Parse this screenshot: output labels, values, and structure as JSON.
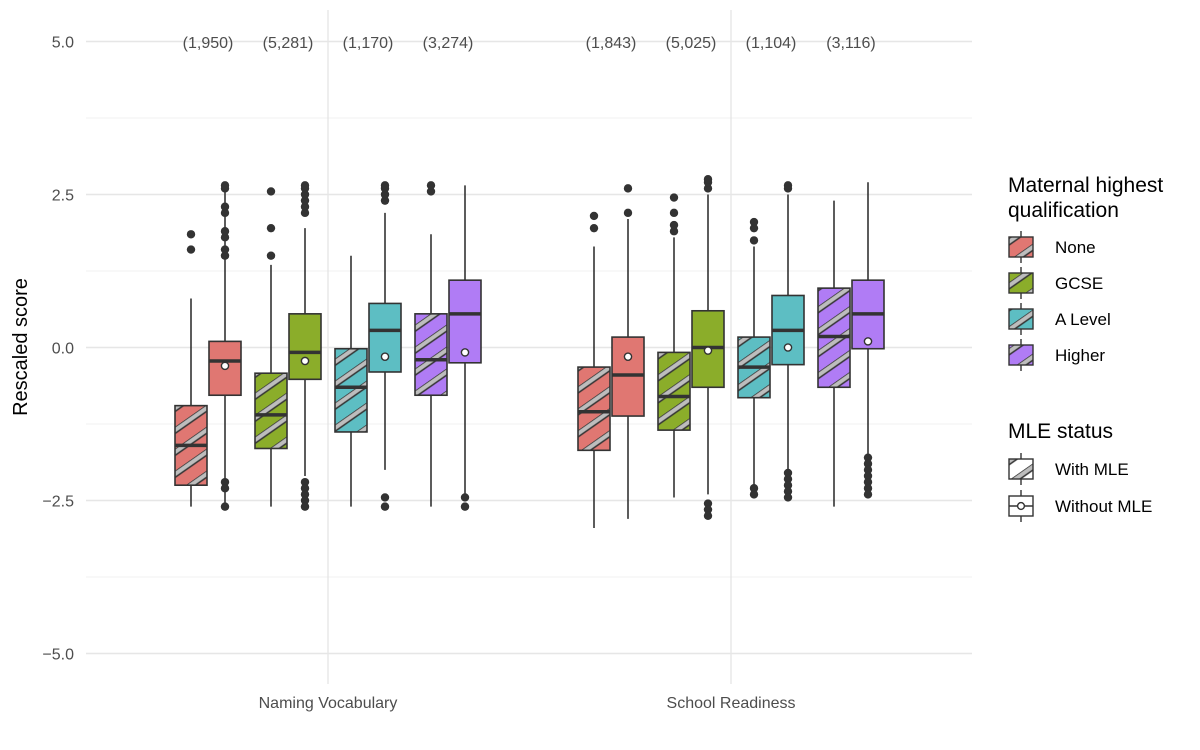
{
  "chart_data": {
    "type": "boxplot",
    "title": "",
    "xlabel": "",
    "ylabel": "Rescaled score",
    "ylim": [
      -5.4,
      5.0
    ],
    "yticks": [
      5.0,
      2.5,
      0.0,
      -2.5,
      -5.0
    ],
    "ytick_labels": [
      "5.0",
      "2.5",
      "0.0",
      "−2.5",
      "−5.0"
    ],
    "categories": [
      "Naming Vocabulary",
      "School Readiness"
    ],
    "legend": {
      "fill_title": "Maternal highest qualification",
      "fill_items": [
        {
          "label": "None",
          "color": "#E07772"
        },
        {
          "label": "GCSE",
          "color": "#8BAD2A"
        },
        {
          "label": "A Level",
          "color": "#5DBEC3"
        },
        {
          "label": "Higher",
          "color": "#B07CF5"
        }
      ],
      "status_title": "MLE status",
      "status_items": [
        {
          "label": "With MLE",
          "pattern": "stripe"
        },
        {
          "label": "Without MLE",
          "pattern": "dot"
        }
      ]
    },
    "panels": [
      {
        "name": "Naming Vocabulary",
        "counts": [
          "(1,950)",
          "(5,281)",
          "(1,170)",
          "(3,274)"
        ],
        "groups": [
          {
            "qualification": "None",
            "with_mle": {
              "min": -2.6,
              "q1": -2.25,
              "median": -1.6,
              "q3": -0.95,
              "max": 0.8,
              "outliers": [
                1.6,
                1.85
              ]
            },
            "without_mle": {
              "min": -2.6,
              "q1": -0.78,
              "median": -0.22,
              "q3": 0.1,
              "max": 2.65,
              "mean": -0.3,
              "outliers": [
                1.5,
                1.6,
                1.8,
                1.9,
                2.2,
                2.3,
                2.6,
                2.65,
                -2.2,
                -2.3,
                -2.6
              ]
            }
          },
          {
            "qualification": "GCSE",
            "with_mle": {
              "min": -2.6,
              "q1": -1.65,
              "median": -1.1,
              "q3": -0.42,
              "max": 1.35,
              "outliers": [
                1.5,
                1.95,
                2.55
              ]
            },
            "without_mle": {
              "min": -2.1,
              "q1": -0.52,
              "median": -0.08,
              "q3": 0.55,
              "max": 1.95,
              "mean": -0.22,
              "outliers": [
                2.2,
                2.3,
                2.4,
                2.5,
                2.6,
                2.65,
                -2.2,
                -2.3,
                -2.4,
                -2.5,
                -2.6
              ]
            }
          },
          {
            "qualification": "A Level",
            "with_mle": {
              "min": -2.6,
              "q1": -1.38,
              "median": -0.65,
              "q3": -0.02,
              "max": 1.5,
              "outliers": []
            },
            "without_mle": {
              "min": -2.0,
              "q1": -0.4,
              "median": 0.28,
              "q3": 0.72,
              "max": 2.2,
              "mean": -0.15,
              "outliers": [
                2.4,
                2.5,
                2.6,
                2.65,
                -2.45,
                -2.6
              ]
            }
          },
          {
            "qualification": "Higher",
            "with_mle": {
              "min": -2.6,
              "q1": -0.78,
              "median": -0.2,
              "q3": 0.55,
              "max": 1.85,
              "outliers": [
                2.55,
                2.65
              ]
            },
            "without_mle": {
              "min": -2.4,
              "q1": -0.25,
              "median": 0.55,
              "q3": 1.1,
              "max": 2.65,
              "mean": -0.08,
              "outliers": [
                -2.45,
                -2.6
              ]
            }
          }
        ]
      },
      {
        "name": "School Readiness",
        "counts": [
          "(1,843)",
          "(5,025)",
          "(1,104)",
          "(3,116)"
        ],
        "groups": [
          {
            "qualification": "None",
            "with_mle": {
              "min": -2.95,
              "q1": -1.68,
              "median": -1.05,
              "q3": -0.32,
              "max": 1.65,
              "outliers": [
                1.95,
                2.15
              ]
            },
            "without_mle": {
              "min": -2.8,
              "q1": -1.12,
              "median": -0.45,
              "q3": 0.17,
              "max": 2.1,
              "mean": -0.15,
              "outliers": [
                2.2,
                2.6
              ]
            }
          },
          {
            "qualification": "GCSE",
            "with_mle": {
              "min": -2.45,
              "q1": -1.35,
              "median": -0.8,
              "q3": -0.08,
              "max": 1.8,
              "outliers": [
                1.9,
                2.0,
                2.2,
                2.45
              ]
            },
            "without_mle": {
              "min": -2.4,
              "q1": -0.65,
              "median": 0.0,
              "q3": 0.6,
              "max": 2.5,
              "mean": -0.05,
              "outliers": [
                2.6,
                2.7,
                2.75,
                -2.55,
                -2.65,
                -2.75
              ]
            }
          },
          {
            "qualification": "A Level",
            "with_mle": {
              "min": -2.25,
              "q1": -0.82,
              "median": -0.32,
              "q3": 0.17,
              "max": 1.65,
              "outliers": [
                1.75,
                1.95,
                2.05,
                -2.3,
                -2.4
              ]
            },
            "without_mle": {
              "min": -2.0,
              "q1": -0.28,
              "median": 0.28,
              "q3": 0.85,
              "max": 2.5,
              "mean": 0.0,
              "outliers": [
                2.6,
                2.65,
                -2.05,
                -2.15,
                -2.25,
                -2.35,
                -2.45
              ]
            }
          },
          {
            "qualification": "Higher",
            "with_mle": {
              "min": -2.6,
              "q1": -0.65,
              "median": 0.18,
              "q3": 0.97,
              "max": 2.4,
              "outliers": []
            },
            "without_mle": {
              "min": -1.75,
              "q1": -0.02,
              "median": 0.55,
              "q3": 1.1,
              "max": 2.7,
              "mean": 0.1,
              "outliers": [
                -1.8,
                -1.9,
                -2.0,
                -2.1,
                -2.2,
                -2.3,
                -2.4
              ]
            }
          }
        ]
      }
    ]
  }
}
